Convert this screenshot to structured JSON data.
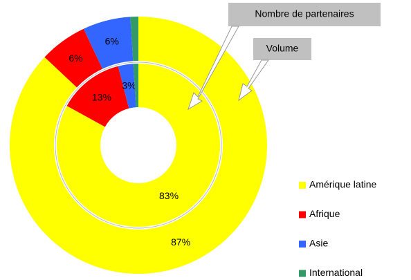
{
  "chart_data": {
    "type": "donut",
    "categories": [
      "Amérique latine",
      "Afrique",
      "Asie",
      "International"
    ],
    "colors": [
      "#ffff00",
      "#ff0000",
      "#3366ff",
      "#339966"
    ],
    "series": [
      {
        "name": "Nombre de partenaires",
        "values": [
          83,
          13,
          3,
          1
        ],
        "value_labels": [
          "83%",
          "13%",
          "3%",
          null
        ]
      },
      {
        "name": "Volume",
        "values": [
          87,
          6,
          6,
          1
        ],
        "value_labels": [
          "87%",
          "6%",
          "6%",
          null
        ]
      }
    ]
  }
}
